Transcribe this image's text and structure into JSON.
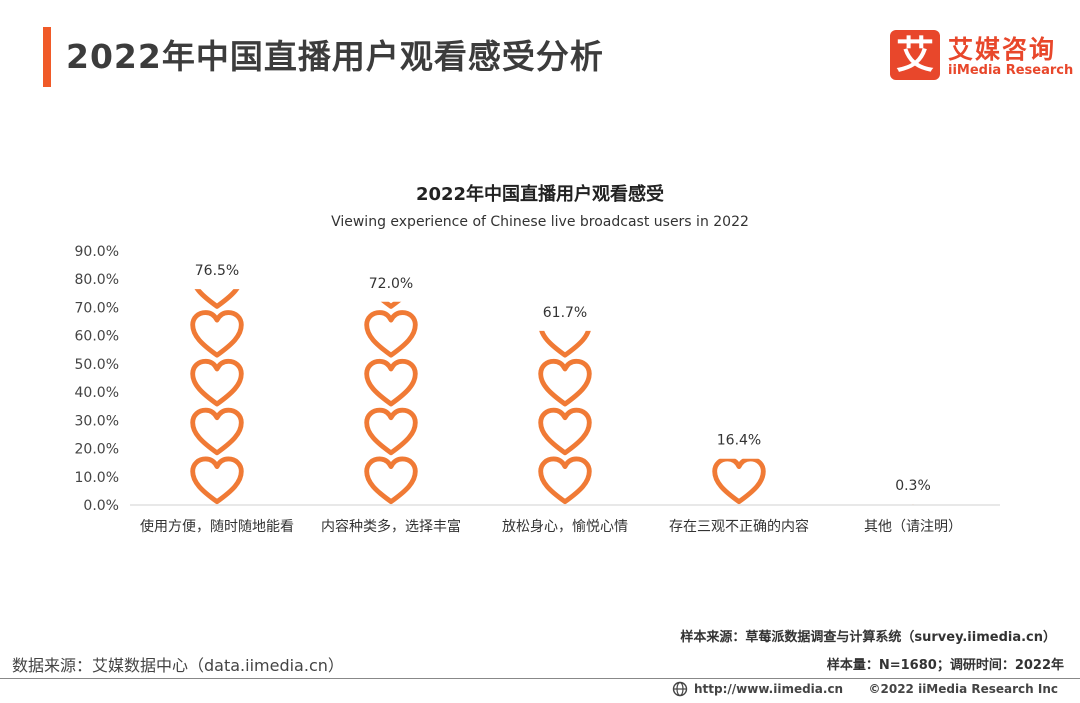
{
  "header": {
    "title": "2022年中国直播用户观看感受分析",
    "accent_color": "#f05a28"
  },
  "logo": {
    "mark": "艾",
    "name_cn": "艾媒咨询",
    "name_en": "iiMedia Research",
    "color": "#e8472b"
  },
  "chart_data": {
    "type": "bar",
    "style": "pictograph-hearts",
    "title": "2022年中国直播用户观看感受",
    "subtitle": "Viewing experience of Chinese live broadcast users in 2022",
    "categories": [
      "使用方便，随时随地能看",
      "内容种类多，选择丰富",
      "放松身心，愉悦心情",
      "存在三观不正确的内容",
      "其他（请注明）"
    ],
    "values": [
      76.5,
      72.0,
      61.7,
      16.4,
      0.3
    ],
    "value_labels": [
      "76.5%",
      "72.0%",
      "61.7%",
      "16.4%",
      "0.3%"
    ],
    "y_ticks": [
      "0.0%",
      "10.0%",
      "20.0%",
      "30.0%",
      "40.0%",
      "50.0%",
      "60.0%",
      "70.0%",
      "80.0%",
      "90.0%"
    ],
    "ylim": [
      0,
      90
    ],
    "grid": false,
    "mark_color": "#f07a35"
  },
  "footer": {
    "sample_source": "样本来源：草莓派数据调查与计算系统（survey.iimedia.cn）",
    "data_source": "数据来源：艾媒数据中心（data.iimedia.cn）",
    "sample_info": "样本量：N=1680；调研时间：2022年",
    "url": "http://www.iimedia.cn",
    "copyright": "©2022  iiMedia Research  Inc"
  }
}
